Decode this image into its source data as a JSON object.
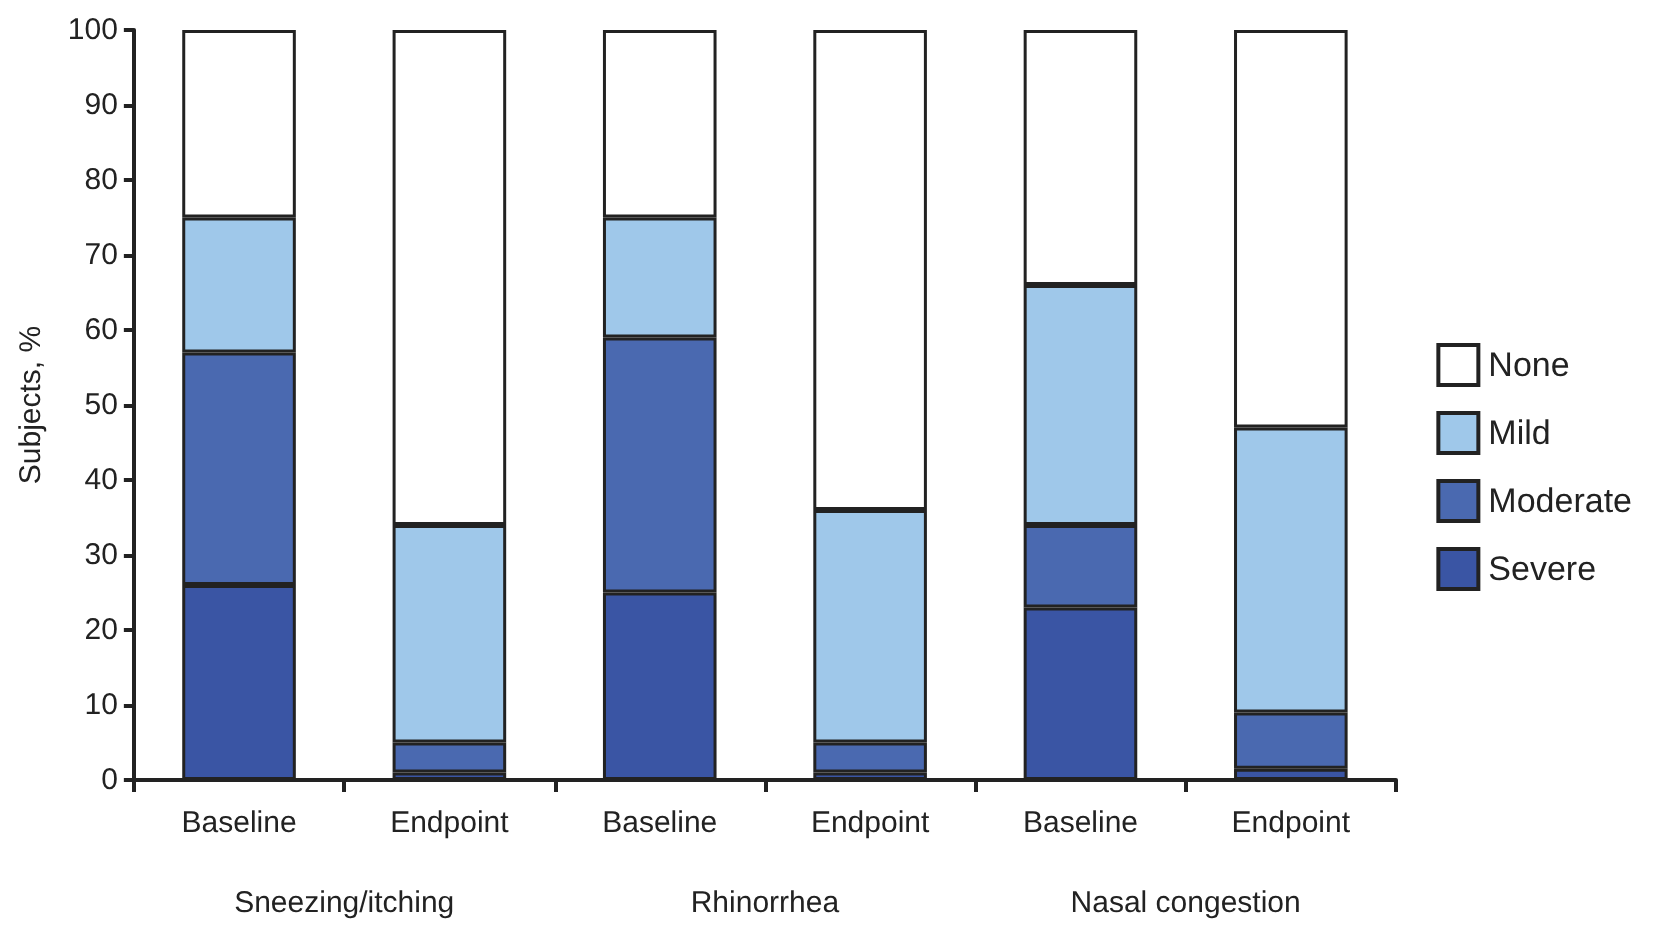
{
  "chart_data": {
    "type": "bar",
    "stacked": true,
    "ylabel": "Subjects, %",
    "categories": [
      "Baseline",
      "Endpoint",
      "Baseline",
      "Endpoint",
      "Baseline",
      "Endpoint"
    ],
    "annotations": [
      "Sneezing/itching",
      "Rhinorrhea",
      "Nasal congestion"
    ],
    "series": [
      {
        "name": "Severe",
        "color": "#3a55a4",
        "values": [
          26,
          1,
          25,
          1,
          23,
          1.5
        ]
      },
      {
        "name": "Moderate",
        "color": "#4a69b0",
        "values": [
          31,
          4,
          34,
          4,
          11,
          7.5
        ]
      },
      {
        "name": "Mild",
        "color": "#9fc8ea",
        "values": [
          18,
          29,
          16,
          31,
          32,
          38
        ]
      },
      {
        "name": "None",
        "color": "#ffffff",
        "values": [
          25,
          66,
          25,
          64,
          34,
          53
        ]
      }
    ],
    "ylim": [
      0,
      100
    ],
    "yticks": [
      0,
      10,
      20,
      30,
      40,
      50,
      60,
      70,
      80,
      90,
      100
    ],
    "grid": false,
    "legend": "right"
  }
}
